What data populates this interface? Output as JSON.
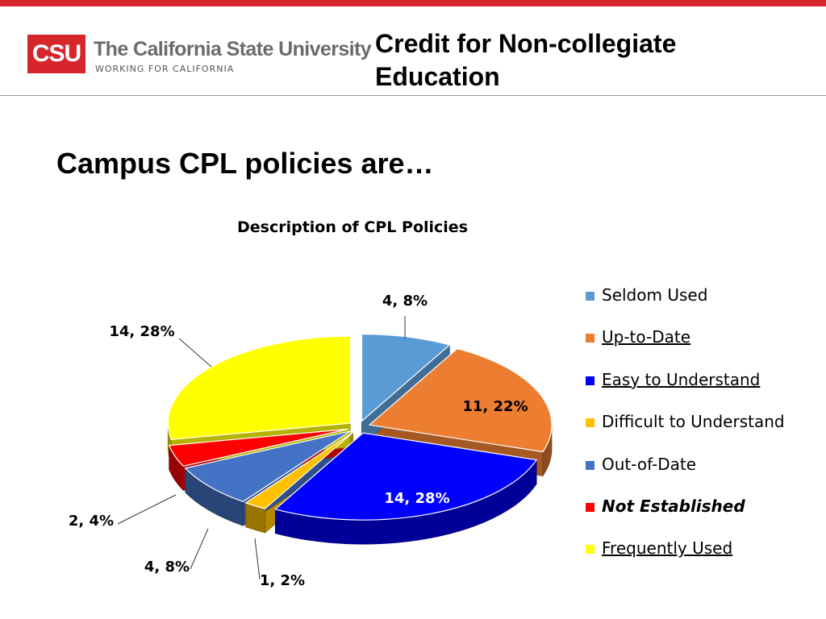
{
  "header": {
    "logo_mark": "CSU",
    "logo_name": "The California State University",
    "logo_tagline": "WORKING FOR CALIFORNIA",
    "title": "Credit for Non-collegiate Education"
  },
  "heading": "Campus CPL policies are…",
  "chart_data": {
    "type": "pie",
    "title": "Description of CPL Policies",
    "legend_position": "right",
    "slices": [
      {
        "name": "Seldom Used",
        "value": 4,
        "percent": 8,
        "label": "4, 8%",
        "color": "#5b9bd5",
        "style": "normal"
      },
      {
        "name": "Up-to-Date",
        "value": 11,
        "percent": 22,
        "label": "11, 22%",
        "color": "#ed7d31",
        "style": "underline"
      },
      {
        "name": "Easy to Understand",
        "value": 14,
        "percent": 28,
        "label": "14, 28%",
        "color": "#0000ff",
        "style": "underline"
      },
      {
        "name": "Difficult to Understand",
        "value": 1,
        "percent": 2,
        "label": "1, 2%",
        "color": "#ffc000",
        "style": "normal"
      },
      {
        "name": "Out-of-Date",
        "value": 4,
        "percent": 8,
        "label": "4, 8%",
        "color": "#4472c4",
        "style": "normal"
      },
      {
        "name": "Not Established",
        "value": 2,
        "percent": 4,
        "label": "2, 4%",
        "color": "#ff0000",
        "style": "bold-italic"
      },
      {
        "name": "Frequently Used",
        "value": 14,
        "percent": 28,
        "label": "14, 28%",
        "color": "#ffff00",
        "style": "underline"
      }
    ]
  }
}
